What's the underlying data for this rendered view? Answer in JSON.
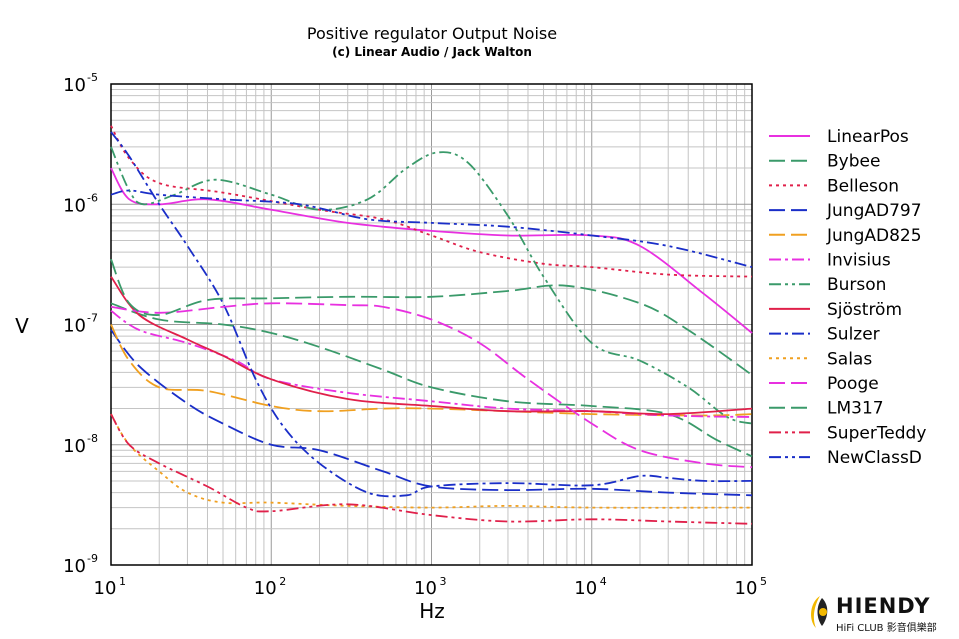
{
  "chart_data": {
    "type": "line",
    "title": "Positive regulator Output Noise",
    "subtitle": "(c) Linear Audio / Jack Walton",
    "xlabel": "Hz",
    "ylabel": "V",
    "x_scale": "log",
    "y_scale": "log",
    "xlim": [
      10,
      100000
    ],
    "ylim": [
      1e-09,
      1e-05
    ],
    "grid": true,
    "legend_position": "right",
    "x_ticks": [
      {
        "value": 10,
        "base": "10",
        "exp": "1"
      },
      {
        "value": 100,
        "base": "10",
        "exp": "2"
      },
      {
        "value": 1000,
        "base": "10",
        "exp": "3"
      },
      {
        "value": 10000,
        "base": "10",
        "exp": "4"
      },
      {
        "value": 100000,
        "base": "10",
        "exp": "5"
      }
    ],
    "y_ticks": [
      {
        "value": 1e-05,
        "base": "10",
        "exp": "-5"
      },
      {
        "value": 1e-06,
        "base": "10",
        "exp": "-6"
      },
      {
        "value": 1e-07,
        "base": "10",
        "exp": "-7"
      },
      {
        "value": 1e-08,
        "base": "10",
        "exp": "-8"
      },
      {
        "value": 1e-09,
        "base": "10",
        "exp": "-9"
      }
    ],
    "series": [
      {
        "name": "LinearPos",
        "color": "#e830e0",
        "dash": "solid",
        "points": [
          [
            10,
            2e-06
          ],
          [
            13,
            1.1e-06
          ],
          [
            20,
            1e-06
          ],
          [
            40,
            1.1e-06
          ],
          [
            100,
            9e-07
          ],
          [
            300,
            7e-07
          ],
          [
            1000,
            6e-07
          ],
          [
            3000,
            5.5e-07
          ],
          [
            10000,
            5.5e-07
          ],
          [
            20000,
            4.5e-07
          ],
          [
            50000,
            1.8e-07
          ],
          [
            100000,
            8.5e-08
          ]
        ]
      },
      {
        "name": "Bybee",
        "color": "#3a9a6a",
        "dash": "longdash",
        "points": [
          [
            10,
            1.5e-07
          ],
          [
            20,
            1.1e-07
          ],
          [
            50,
            1e-07
          ],
          [
            100,
            8.5e-08
          ],
          [
            200,
            6.5e-08
          ],
          [
            500,
            4.2e-08
          ],
          [
            1000,
            3e-08
          ],
          [
            3000,
            2.3e-08
          ],
          [
            10000,
            2.1e-08
          ],
          [
            30000,
            1.8e-08
          ],
          [
            60000,
            1.1e-08
          ],
          [
            100000,
            8e-09
          ]
        ]
      },
      {
        "name": "Belleson",
        "color": "#e0204a",
        "dash": "dot",
        "points": [
          [
            10,
            4.5e-06
          ],
          [
            13,
            2.4e-06
          ],
          [
            20,
            1.5e-06
          ],
          [
            50,
            1.25e-06
          ],
          [
            200,
            9e-07
          ],
          [
            500,
            7.5e-07
          ],
          [
            1000,
            5.5e-07
          ],
          [
            2000,
            4e-07
          ],
          [
            5000,
            3.2e-07
          ],
          [
            10000,
            3e-07
          ],
          [
            30000,
            2.6e-07
          ],
          [
            100000,
            2.5e-07
          ]
        ]
      },
      {
        "name": "JungAD797",
        "color": "#1a2ec8",
        "dash": "longdash",
        "points": [
          [
            10,
            9e-08
          ],
          [
            15,
            4.5e-08
          ],
          [
            30,
            2.2e-08
          ],
          [
            50,
            1.5e-08
          ],
          [
            100,
            1e-08
          ],
          [
            200,
            9e-09
          ],
          [
            500,
            6e-09
          ],
          [
            1000,
            4.5e-09
          ],
          [
            3000,
            4.2e-09
          ],
          [
            10000,
            4.3e-09
          ],
          [
            30000,
            4e-09
          ],
          [
            100000,
            3.8e-09
          ]
        ]
      },
      {
        "name": "JungAD825",
        "color": "#f0a020",
        "dash": "longdash",
        "points": [
          [
            10,
            1e-07
          ],
          [
            13,
            5e-08
          ],
          [
            20,
            3e-08
          ],
          [
            40,
            2.8e-08
          ],
          [
            100,
            2.1e-08
          ],
          [
            200,
            1.9e-08
          ],
          [
            500,
            2e-08
          ],
          [
            1000,
            2e-08
          ],
          [
            3000,
            1.9e-08
          ],
          [
            10000,
            1.8e-08
          ],
          [
            50000,
            1.75e-08
          ],
          [
            100000,
            1.8e-08
          ]
        ]
      },
      {
        "name": "Invisius",
        "color": "#e830e0",
        "dash": "dashdot",
        "points": [
          [
            10,
            1.3e-07
          ],
          [
            15,
            9e-08
          ],
          [
            30,
            7e-08
          ],
          [
            60,
            5e-08
          ],
          [
            100,
            3.5e-08
          ],
          [
            300,
            2.7e-08
          ],
          [
            1000,
            2.3e-08
          ],
          [
            3000,
            2e-08
          ],
          [
            10000,
            1.9e-08
          ],
          [
            30000,
            1.75e-08
          ],
          [
            100000,
            1.7e-08
          ]
        ]
      },
      {
        "name": "Burson",
        "color": "#3a9a6a",
        "dash": "dashdotdot",
        "points": [
          [
            10,
            3e-06
          ],
          [
            13,
            1.3e-06
          ],
          [
            16,
            1e-06
          ],
          [
            25,
            1.2e-06
          ],
          [
            45,
            1.6e-06
          ],
          [
            100,
            1.2e-06
          ],
          [
            200,
            9e-07
          ],
          [
            400,
            1.1e-06
          ],
          [
            700,
            2e-06
          ],
          [
            1100,
            2.7e-06
          ],
          [
            1700,
            2.2e-06
          ],
          [
            3000,
            8e-07
          ],
          [
            5000,
            2.5e-07
          ],
          [
            10000,
            7e-08
          ],
          [
            20000,
            5e-08
          ],
          [
            40000,
            3e-08
          ],
          [
            70000,
            1.7e-08
          ],
          [
            100000,
            1.5e-08
          ]
        ]
      },
      {
        "name": "Sjöström",
        "color": "#e0204a",
        "dash": "solid",
        "points": [
          [
            10,
            2.5e-07
          ],
          [
            15,
            1.2e-07
          ],
          [
            30,
            7.5e-08
          ],
          [
            50,
            5.5e-08
          ],
          [
            100,
            3.5e-08
          ],
          [
            300,
            2.4e-08
          ],
          [
            1000,
            2.1e-08
          ],
          [
            3000,
            1.9e-08
          ],
          [
            10000,
            1.9e-08
          ],
          [
            30000,
            1.8e-08
          ],
          [
            100000,
            2e-08
          ]
        ]
      },
      {
        "name": "Sulzer",
        "color": "#1a2ec8",
        "dash": "dashdot",
        "points": [
          [
            10,
            4e-06
          ],
          [
            13,
            2.5e-06
          ],
          [
            20,
            1e-06
          ],
          [
            30,
            4.5e-07
          ],
          [
            50,
            1.5e-07
          ],
          [
            80,
            3.5e-08
          ],
          [
            120,
            1.4e-08
          ],
          [
            200,
            7e-09
          ],
          [
            400,
            4e-09
          ],
          [
            700,
            3.8e-09
          ],
          [
            1000,
            4.5e-09
          ],
          [
            3000,
            4.8e-09
          ],
          [
            10000,
            4.6e-09
          ],
          [
            20000,
            5.5e-09
          ],
          [
            30000,
            5.3e-09
          ],
          [
            50000,
            5e-09
          ],
          [
            100000,
            5e-09
          ]
        ]
      },
      {
        "name": "Salas",
        "color": "#f0a020",
        "dash": "dot",
        "points": [
          [
            10,
            1.8e-08
          ],
          [
            13,
            1e-08
          ],
          [
            20,
            6e-09
          ],
          [
            30,
            4e-09
          ],
          [
            50,
            3.3e-09
          ],
          [
            100,
            3.3e-09
          ],
          [
            300,
            3.1e-09
          ],
          [
            1000,
            3e-09
          ],
          [
            3000,
            3.1e-09
          ],
          [
            10000,
            3e-09
          ],
          [
            100000,
            3e-09
          ]
        ]
      },
      {
        "name": "Pooge",
        "color": "#e830e0",
        "dash": "longdash",
        "points": [
          [
            10,
            1.4e-07
          ],
          [
            20,
            1.25e-07
          ],
          [
            50,
            1.4e-07
          ],
          [
            100,
            1.5e-07
          ],
          [
            300,
            1.45e-07
          ],
          [
            500,
            1.4e-07
          ],
          [
            1000,
            1.1e-07
          ],
          [
            2000,
            7e-08
          ],
          [
            4000,
            3.5e-08
          ],
          [
            10000,
            1.5e-08
          ],
          [
            20000,
            9e-09
          ],
          [
            50000,
            7e-09
          ],
          [
            100000,
            6.5e-09
          ]
        ]
      },
      {
        "name": "LM317",
        "color": "#3a9a6a",
        "dash": "longdash",
        "points": [
          [
            10,
            3.5e-07
          ],
          [
            13,
            1.5e-07
          ],
          [
            20,
            1.2e-07
          ],
          [
            40,
            1.6e-07
          ],
          [
            100,
            1.65e-07
          ],
          [
            300,
            1.7e-07
          ],
          [
            1000,
            1.7e-07
          ],
          [
            3000,
            1.9e-07
          ],
          [
            7000,
            2.1e-07
          ],
          [
            20000,
            1.5e-07
          ],
          [
            40000,
            9e-08
          ],
          [
            100000,
            3.8e-08
          ]
        ]
      },
      {
        "name": "SuperTeddy",
        "color": "#e0204a",
        "dash": "dashdotdot",
        "points": [
          [
            10,
            1.8e-08
          ],
          [
            13,
            1e-08
          ],
          [
            20,
            7e-09
          ],
          [
            40,
            4.5e-09
          ],
          [
            70,
            3e-09
          ],
          [
            100,
            2.8e-09
          ],
          [
            300,
            3.2e-09
          ],
          [
            1000,
            2.6e-09
          ],
          [
            3000,
            2.3e-09
          ],
          [
            10000,
            2.4e-09
          ],
          [
            30000,
            2.3e-09
          ],
          [
            100000,
            2.2e-09
          ]
        ]
      },
      {
        "name": "NewClassD",
        "color": "#1a2ec8",
        "dash": "dashdotdot",
        "points": [
          [
            10,
            1.2e-06
          ],
          [
            13,
            1.3e-06
          ],
          [
            20,
            1.2e-06
          ],
          [
            50,
            1.1e-06
          ],
          [
            150,
            1e-06
          ],
          [
            400,
            7.5e-07
          ],
          [
            1000,
            7e-07
          ],
          [
            3000,
            6.5e-07
          ],
          [
            10000,
            5.5e-07
          ],
          [
            30000,
            4.5e-07
          ],
          [
            100000,
            3e-07
          ]
        ]
      }
    ]
  },
  "logo": {
    "name": "HIENDY",
    "subtitle": "HiFi CLUB 影音俱樂部",
    "url": "WWW.HIENDY.COM"
  }
}
